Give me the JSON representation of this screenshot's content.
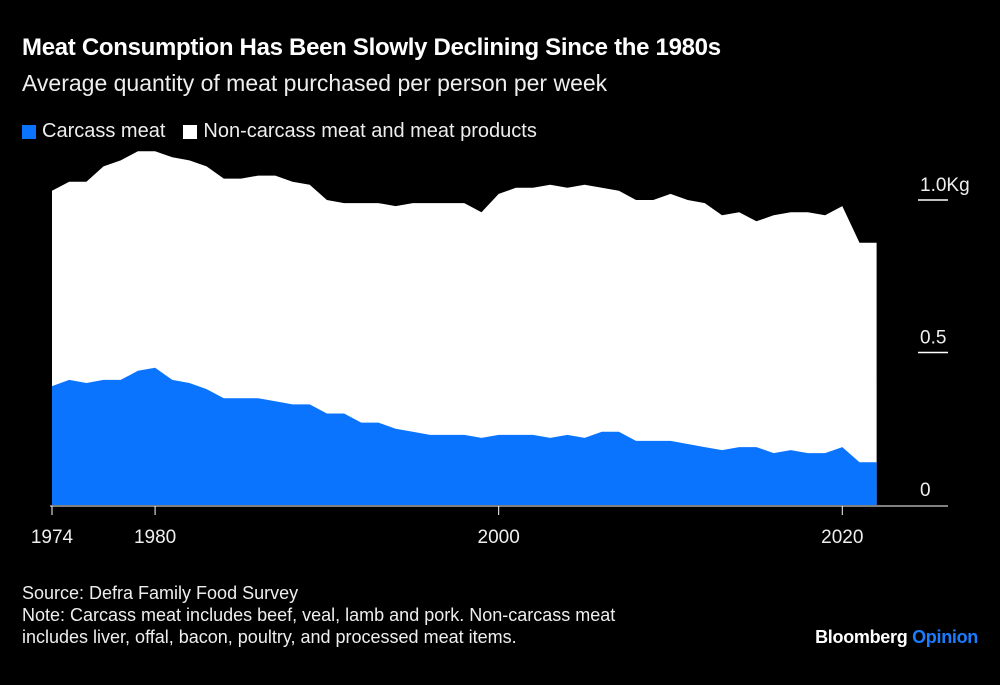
{
  "title": "Meat Consumption Has Been Slowly Declining Since the 1980s",
  "subtitle": "Average quantity of meat purchased per person per week",
  "colors": {
    "carcass": "#0a74ff",
    "non_carcass": "#ffffff",
    "background": "#000000"
  },
  "chart_data": {
    "type": "area",
    "stacked": true,
    "x": [
      1974,
      1975,
      1976,
      1977,
      1978,
      1979,
      1980,
      1981,
      1982,
      1983,
      1984,
      1985,
      1986,
      1987,
      1988,
      1989,
      1990,
      1991,
      1992,
      1993,
      1994,
      1995,
      1996,
      1997,
      1998,
      1999,
      2000,
      2001,
      2002,
      2003,
      2004,
      2005,
      2006,
      2007,
      2008,
      2009,
      2010,
      2011,
      2012,
      2013,
      2014,
      2015,
      2016,
      2017,
      2018,
      2019,
      2020,
      2021,
      2022
    ],
    "series": [
      {
        "name": "Carcass meat",
        "values": [
          0.39,
          0.41,
          0.4,
          0.41,
          0.41,
          0.44,
          0.45,
          0.41,
          0.4,
          0.38,
          0.35,
          0.35,
          0.35,
          0.34,
          0.33,
          0.33,
          0.3,
          0.3,
          0.27,
          0.27,
          0.25,
          0.24,
          0.23,
          0.23,
          0.23,
          0.22,
          0.23,
          0.23,
          0.23,
          0.22,
          0.23,
          0.22,
          0.24,
          0.24,
          0.21,
          0.21,
          0.21,
          0.2,
          0.19,
          0.18,
          0.19,
          0.19,
          0.17,
          0.18,
          0.17,
          0.17,
          0.19,
          0.14,
          0.14
        ]
      },
      {
        "name": "Non-carcass meat and meat products",
        "total_values": [
          1.03,
          1.06,
          1.06,
          1.11,
          1.13,
          1.16,
          1.16,
          1.14,
          1.13,
          1.11,
          1.07,
          1.07,
          1.08,
          1.08,
          1.06,
          1.05,
          1.0,
          0.99,
          0.99,
          0.99,
          0.98,
          0.99,
          0.99,
          0.99,
          0.99,
          0.96,
          1.02,
          1.04,
          1.04,
          1.05,
          1.04,
          1.05,
          1.04,
          1.03,
          1.0,
          1.0,
          1.02,
          1.0,
          0.99,
          0.95,
          0.96,
          0.93,
          0.95,
          0.96,
          0.96,
          0.95,
          0.98,
          0.86,
          0.86
        ]
      }
    ],
    "ylim": [
      0,
      1.15
    ],
    "y_ticks": [
      {
        "value": 0,
        "label": "0"
      },
      {
        "value": 0.5,
        "label": "0.5"
      },
      {
        "value": 1.0,
        "label": "1.0Kg"
      }
    ],
    "x_ticks": [
      {
        "value": 1974,
        "label": "1974"
      },
      {
        "value": 1980,
        "label": "1980"
      },
      {
        "value": 2000,
        "label": "2000"
      },
      {
        "value": 2020,
        "label": "2020"
      }
    ],
    "xlim": [
      1974,
      2025
    ],
    "legend": "top-left",
    "grid": false
  },
  "legend": {
    "carcass": "Carcass meat",
    "non_carcass": "Non-carcass meat and meat products"
  },
  "footer": {
    "source": "Source: Defra Family Food Survey",
    "note_line1": "Note: Carcass meat includes beef, veal, lamb and pork. Non-carcass meat",
    "note_line2": "includes liver, offal, bacon, poultry, and processed meat items."
  },
  "logo": {
    "brand": "Bloomberg",
    "section": "Opinion"
  }
}
